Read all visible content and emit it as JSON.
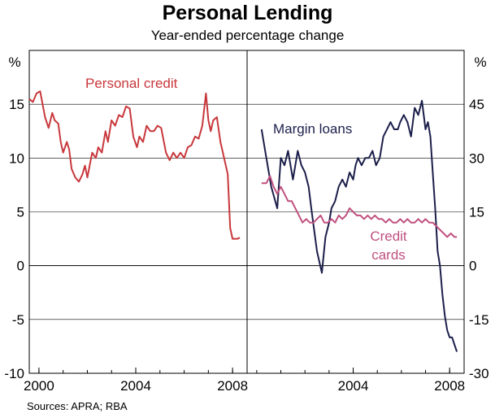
{
  "title": "Personal Lending",
  "subtitle": "Year-ended percentage change",
  "source": "Sources: APRA; RBA",
  "colors": {
    "personal": "#c8383c",
    "margin": "#1c1f4a",
    "credit": "#c0507f",
    "grid": "#000000"
  },
  "chart_data": [
    {
      "type": "line",
      "panel": "left",
      "ylabel": "%",
      "ylim": [
        -10,
        20
      ],
      "yticks": [
        -10,
        -5,
        0,
        5,
        10,
        15
      ],
      "yticklabels": [
        "-10",
        "-5",
        "0",
        "5",
        "10",
        "15"
      ],
      "xlim": [
        1999.6,
        2008.6
      ],
      "xticks": [
        2000,
        2004,
        2008
      ],
      "xticklabels": [
        "2000",
        "2004",
        "2008"
      ],
      "series": [
        {
          "name": "Personal credit",
          "x": [
            1999.6,
            1999.75,
            1999.9,
            2000.05,
            2000.25,
            2000.4,
            2000.55,
            2000.65,
            2000.8,
            2000.9,
            2001.0,
            2001.15,
            2001.25,
            2001.35,
            2001.5,
            2001.65,
            2001.8,
            2001.9,
            2002.0,
            2002.2,
            2002.35,
            2002.45,
            2002.6,
            2002.75,
            2002.85,
            2003.0,
            2003.15,
            2003.3,
            2003.45,
            2003.6,
            2003.75,
            2003.9,
            2004.05,
            2004.15,
            2004.3,
            2004.45,
            2004.6,
            2004.75,
            2004.9,
            2005.05,
            2005.25,
            2005.4,
            2005.55,
            2005.7,
            2005.85,
            2006.0,
            2006.15,
            2006.3,
            2006.45,
            2006.6,
            2006.75,
            2006.9,
            2007.0,
            2007.1,
            2007.2,
            2007.35,
            2007.5,
            2007.6,
            2007.7,
            2007.8,
            2007.9,
            2008.0,
            2008.1,
            2008.2,
            2008.3
          ],
          "y": [
            15.5,
            15.2,
            16.0,
            16.2,
            13.8,
            12.8,
            14.2,
            13.5,
            13.2,
            11.5,
            10.5,
            11.5,
            10.8,
            9.0,
            8.2,
            7.8,
            8.5,
            9.3,
            8.2,
            10.5,
            10.0,
            11.0,
            10.5,
            12.5,
            11.5,
            13.5,
            13.0,
            14.0,
            13.8,
            14.8,
            14.6,
            12.0,
            11.0,
            12.0,
            11.5,
            13.0,
            12.5,
            12.5,
            13.0,
            12.8,
            10.5,
            9.8,
            10.5,
            10.0,
            10.5,
            10.0,
            11.0,
            11.2,
            12.0,
            11.8,
            13.0,
            16.0,
            13.5,
            12.5,
            13.5,
            13.8,
            11.5,
            10.5,
            9.5,
            8.5,
            3.5,
            2.5,
            2.5,
            2.5,
            2.6
          ]
        }
      ],
      "annotations": [
        {
          "text": "Personal credit",
          "series": "Personal credit"
        }
      ]
    },
    {
      "type": "line",
      "panel": "right",
      "ylabel": "%",
      "ylim": [
        -30,
        60
      ],
      "yticks": [
        -30,
        -15,
        0,
        15,
        30,
        45
      ],
      "yticklabels": [
        "-30",
        "-15",
        "0",
        "15",
        "30",
        "45"
      ],
      "xlim": [
        1999.6,
        2008.6
      ],
      "xticks": [
        2004,
        2008
      ],
      "xticklabels": [
        "2004",
        "2008"
      ],
      "series": [
        {
          "name": "Margin loans",
          "x": [
            2000.2,
            2000.4,
            2000.6,
            2000.85,
            2001.0,
            2001.15,
            2001.3,
            2001.5,
            2001.7,
            2001.85,
            2002.0,
            2002.15,
            2002.3,
            2002.5,
            2002.7,
            2002.85,
            2003.0,
            2003.1,
            2003.25,
            2003.4,
            2003.55,
            2003.7,
            2003.85,
            2004.0,
            2004.1,
            2004.2,
            2004.35,
            2004.5,
            2004.65,
            2004.8,
            2004.95,
            2005.1,
            2005.25,
            2005.4,
            2005.55,
            2005.7,
            2005.85,
            2005.95,
            2006.1,
            2006.25,
            2006.4,
            2006.55,
            2006.7,
            2006.85,
            2007.0,
            2007.1,
            2007.2,
            2007.3,
            2007.4,
            2007.5,
            2007.6,
            2007.7,
            2007.8,
            2007.9,
            2008.0,
            2008.1,
            2008.2,
            2008.3
          ],
          "y": [
            38,
            30,
            22,
            16,
            30,
            28,
            32,
            24,
            32,
            28,
            26,
            22,
            14,
            4,
            -2,
            8,
            12,
            16,
            18,
            22,
            24,
            22,
            26,
            24,
            28,
            30,
            28,
            30,
            30,
            32,
            28,
            30,
            36,
            38,
            40,
            38,
            38,
            40,
            42,
            40,
            36,
            44,
            42,
            46,
            38,
            40,
            36,
            26,
            16,
            4,
            0,
            -8,
            -14,
            -18,
            -20,
            -20,
            -22,
            -24
          ]
        },
        {
          "name": "Credit cards",
          "x": [
            2000.2,
            2000.4,
            2000.55,
            2000.7,
            2000.85,
            2001.0,
            2001.15,
            2001.3,
            2001.45,
            2001.6,
            2001.75,
            2001.9,
            2002.05,
            2002.2,
            2002.35,
            2002.5,
            2002.65,
            2002.8,
            2002.95,
            2003.1,
            2003.25,
            2003.4,
            2003.55,
            2003.7,
            2003.85,
            2004.0,
            2004.15,
            2004.3,
            2004.45,
            2004.6,
            2004.75,
            2004.9,
            2005.05,
            2005.2,
            2005.35,
            2005.5,
            2005.65,
            2005.8,
            2005.95,
            2006.1,
            2006.25,
            2006.4,
            2006.55,
            2006.7,
            2006.85,
            2007.0,
            2007.15,
            2007.3,
            2007.45,
            2007.6,
            2007.75,
            2007.9,
            2008.05,
            2008.2,
            2008.3
          ],
          "y": [
            23,
            23,
            25,
            22,
            20,
            22,
            20,
            18,
            18,
            16,
            14,
            12,
            13,
            12,
            12,
            13,
            14,
            12,
            12,
            13,
            12,
            14,
            13,
            14,
            16,
            15,
            14,
            14,
            13,
            14,
            13,
            14,
            13,
            13,
            12,
            13,
            12,
            12,
            13,
            12,
            13,
            12,
            12,
            13,
            12,
            13,
            12,
            12,
            11,
            10,
            9,
            8,
            9,
            8,
            8
          ]
        }
      ],
      "annotations": [
        {
          "text": "Margin loans",
          "series": "Margin loans"
        },
        {
          "text": "Credit",
          "series": "Credit cards"
        },
        {
          "text": "cards",
          "series": "Credit cards"
        }
      ]
    }
  ]
}
